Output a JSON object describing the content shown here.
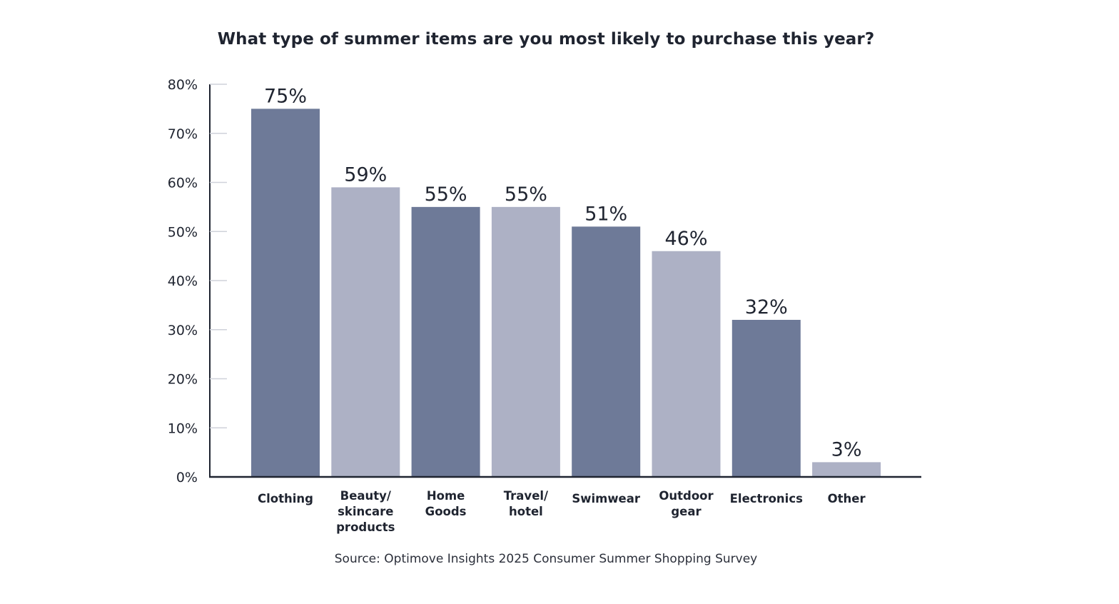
{
  "chart_data": {
    "type": "bar",
    "title": "What type of summer items are you most likely to purchase this year?",
    "source": "Source: Optimove Insights 2025 Consumer Summer Shopping Survey",
    "categories": [
      [
        "Clothing"
      ],
      [
        "Beauty/",
        "skincare",
        "products"
      ],
      [
        "Home",
        "Goods"
      ],
      [
        "Travel/",
        "hotel"
      ],
      [
        "Swimwear"
      ],
      [
        "Outdoor",
        "gear"
      ],
      [
        "Electronics"
      ],
      [
        "Other"
      ]
    ],
    "values": [
      75,
      59,
      55,
      55,
      51,
      46,
      32,
      3
    ],
    "value_labels": [
      "75%",
      "59%",
      "55%",
      "55%",
      "51%",
      "46%",
      "32%",
      "3%"
    ],
    "bar_colors": [
      "#6e7a98",
      "#adb1c5"
    ],
    "ylim": [
      0,
      80
    ],
    "yticks": [
      0,
      10,
      20,
      30,
      40,
      50,
      60,
      70,
      80
    ],
    "ytick_labels": [
      "0%",
      "10%",
      "20%",
      "30%",
      "40%",
      "50%",
      "60%",
      "70%",
      "80%"
    ],
    "grid": false,
    "legend": "none",
    "xlabel": "",
    "ylabel": ""
  }
}
